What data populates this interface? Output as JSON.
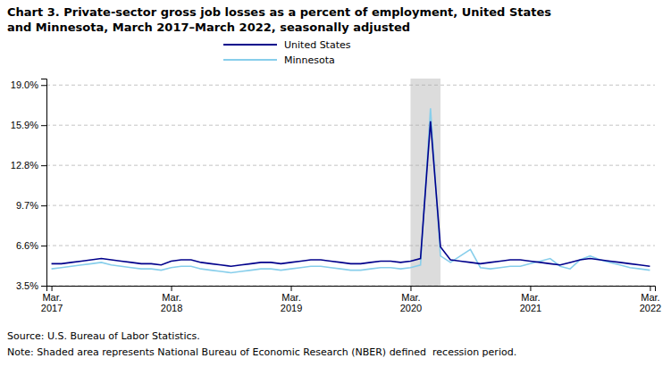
{
  "chart_data": {
    "type": "line",
    "title": [
      "Chart 3. Private-sector gross job losses as a percent of employment, United States",
      "and Minnesota, March 2017–March 2022, seasonally adjusted"
    ],
    "annotations": [
      "Source: U.S. Bureau of Labor Statistics.",
      "Note: Shaded area represents National Bureau of Economic Research (NBER) defined  recession period."
    ],
    "categories": [
      "Mar.\n2017",
      null,
      null,
      null,
      null,
      null,
      null,
      null,
      null,
      null,
      null,
      null,
      "Mar.\n2018",
      null,
      null,
      null,
      null,
      null,
      null,
      null,
      null,
      null,
      null,
      null,
      "Mar.\n2019",
      null,
      null,
      null,
      null,
      null,
      null,
      null,
      null,
      null,
      null,
      null,
      "Mar.\n2020",
      null,
      null,
      null,
      null,
      null,
      null,
      null,
      null,
      null,
      null,
      null,
      "Mar.\n2021",
      null,
      null,
      null,
      null,
      null,
      null,
      null,
      null,
      null,
      null,
      null,
      "Mar.\n2022"
    ],
    "series": [
      {
        "name": "United States",
        "color": "#00008B",
        "values": [
          5.2,
          5.2,
          5.3,
          5.4,
          5.5,
          5.6,
          5.5,
          5.4,
          5.3,
          5.2,
          5.2,
          5.1,
          5.4,
          5.5,
          5.5,
          5.3,
          5.2,
          5.1,
          5.0,
          5.1,
          5.2,
          5.3,
          5.3,
          5.2,
          5.3,
          5.4,
          5.5,
          5.5,
          5.4,
          5.3,
          5.2,
          5.2,
          5.3,
          5.4,
          5.4,
          5.3,
          5.4,
          5.6,
          16.2,
          6.5,
          5.5,
          5.4,
          5.3,
          5.2,
          5.3,
          5.4,
          5.5,
          5.5,
          5.4,
          5.3,
          5.2,
          5.1,
          5.3,
          5.5,
          5.6,
          5.5,
          5.4,
          5.3,
          5.2,
          5.1,
          5.0
        ]
      },
      {
        "name": "Minnesota",
        "color": "#87CEEB",
        "values": [
          4.8,
          4.9,
          5.0,
          5.1,
          5.2,
          5.3,
          5.1,
          5.0,
          4.9,
          4.8,
          4.8,
          4.7,
          4.9,
          5.0,
          5.0,
          4.8,
          4.7,
          4.6,
          4.5,
          4.6,
          4.7,
          4.8,
          4.8,
          4.7,
          4.8,
          4.9,
          5.0,
          5.0,
          4.9,
          4.8,
          4.7,
          4.7,
          4.8,
          4.9,
          4.9,
          4.8,
          4.9,
          5.1,
          17.2,
          5.8,
          5.3,
          5.8,
          6.3,
          4.9,
          4.8,
          4.9,
          5.0,
          5.0,
          5.2,
          5.4,
          5.6,
          5.0,
          4.8,
          5.5,
          5.8,
          5.5,
          5.3,
          5.1,
          4.9,
          4.8,
          4.7
        ]
      }
    ],
    "shaded_span": {
      "start": 36,
      "end": 39,
      "color": "#DCDCDC"
    },
    "ylim": [
      3.5,
      19.5
    ],
    "yticks": [
      {
        "value": 3.5,
        "label": "3.5%"
      },
      {
        "value": 6.6,
        "label": "6.6%"
      },
      {
        "value": 9.7,
        "label": "9.7%"
      },
      {
        "value": 12.8,
        "label": "12.8%"
      },
      {
        "value": 15.9,
        "label": "15.9%"
      },
      {
        "value": 19.0,
        "label": "19.0%"
      }
    ],
    "grid": true,
    "legend": "top"
  }
}
